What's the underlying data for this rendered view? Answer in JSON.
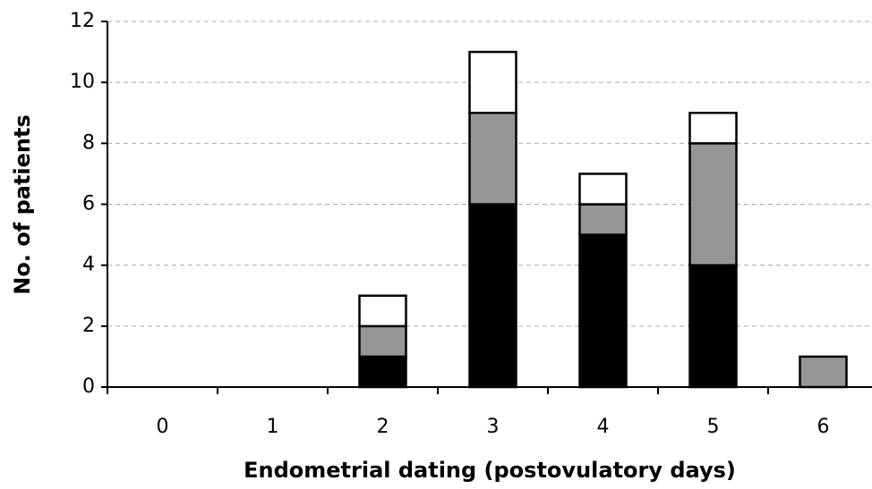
{
  "chart_data": {
    "type": "stacked_bar",
    "x_label": "Endometrial dating (postovulatory days)",
    "y_label": "No. of patients",
    "categories": [
      "0",
      "1",
      "2",
      "3",
      "4",
      "5",
      "6"
    ],
    "series": [
      {
        "color": "#000000",
        "values": [
          0,
          0,
          1,
          6,
          5,
          4,
          0
        ]
      },
      {
        "color": "#969696",
        "values": [
          0,
          0,
          1,
          3,
          1,
          4,
          1
        ]
      },
      {
        "color": "#ffffff",
        "values": [
          0,
          0,
          1,
          2,
          1,
          1,
          0
        ]
      }
    ],
    "ylim": [
      0,
      12
    ],
    "yticks": [
      0,
      2,
      4,
      6,
      8,
      10,
      12
    ],
    "grid": true
  }
}
